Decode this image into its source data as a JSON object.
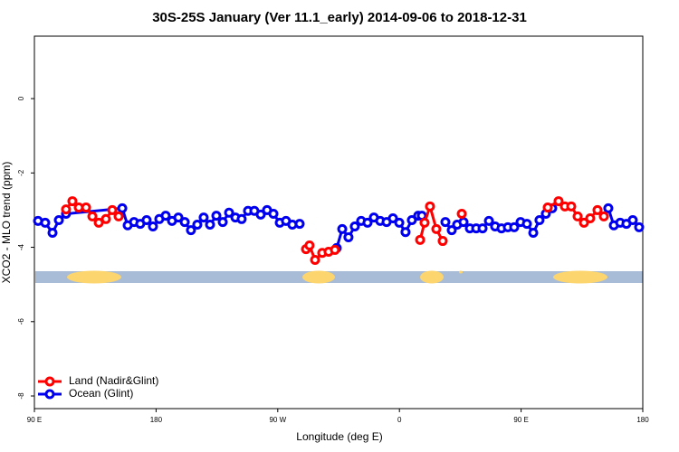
{
  "chart_data": {
    "type": "line",
    "title": "30S-25S January (Ver 11.1_early)   2014-09-06 to 2018-12-31",
    "x_label": "Longitude (deg E)",
    "y_label": "XCO2 - MLO trend (ppm)",
    "xlim": [
      90,
      540
    ],
    "ylim": [
      -8.34,
      1.68
    ],
    "xticks": [
      {
        "value": 90,
        "label": "90 E"
      },
      180,
      {
        "value": 270,
        "label": "90 W"
      },
      {
        "value": 360,
        "label": "0"
      },
      {
        "value": 450,
        "label": "90 E"
      },
      {
        "value": 540,
        "label": "180"
      }
    ],
    "yticks": [
      0,
      -2,
      -4,
      -6,
      -8
    ],
    "legend": "bottomleft",
    "series": [
      {
        "name": "Land (Nadir&Glint)",
        "color": "#ff0000",
        "x": [
          113.4,
          118.1,
          122.8,
          128.2,
          132.9,
          137.6,
          142.9,
          147.6,
          152.3,
          null,
          290.9,
          293.5,
          297.6,
          302.9,
          307.6,
          312.3,
          null,
          375.3,
          378.6,
          382.6,
          387.3,
          392.0,
          null,
          406.1,
          null,
          469.7,
          477.7,
          482.4,
          487.1,
          491.8,
          496.5,
          501.1,
          506.5,
          511.2
        ],
        "values": [
          -2.98,
          -2.76,
          -2.93,
          -2.93,
          -3.17,
          -3.34,
          -3.24,
          -3.0,
          -3.17,
          null,
          -4.05,
          -3.95,
          -4.34,
          -4.15,
          -4.12,
          -4.07,
          null,
          -3.8,
          -3.34,
          -2.9,
          -3.51,
          -3.83,
          null,
          -3.1,
          null,
          -2.93,
          -2.76,
          -2.9,
          -2.9,
          -3.17,
          -3.34,
          -3.22,
          -3.0,
          -3.17
        ]
      },
      {
        "name": "Ocean (Glint)",
        "color": "#0000ee",
        "x": [
          92.7,
          98.0,
          103.4,
          108.1,
          113.4,
          155.0,
          159.0,
          163.7,
          168.3,
          173.0,
          177.7,
          182.4,
          187.1,
          191.8,
          196.5,
          201.2,
          205.8,
          210.5,
          215.2,
          219.9,
          224.6,
          229.3,
          234.0,
          238.7,
          243.3,
          248.0,
          252.7,
          257.4,
          262.1,
          266.8,
          271.5,
          276.1,
          280.8,
          286.2,
          null,
          313.6,
          317.7,
          322.3,
          327.0,
          331.7,
          336.4,
          341.1,
          345.8,
          350.5,
          355.2,
          359.9,
          364.5,
          369.2,
          373.9,
          376.6,
          null,
          394.0,
          398.7,
          402.7,
          407.4,
          412.1,
          416.8,
          421.5,
          426.2,
          430.8,
          435.5,
          440.2,
          444.9,
          449.6,
          454.3,
          459.0,
          463.6,
          468.3,
          473.0,
          null,
          514.5,
          518.6,
          523.3,
          527.9,
          532.6,
          537.3
        ],
        "values": [
          -3.29,
          -3.34,
          -3.61,
          -3.27,
          -3.1,
          -2.95,
          -3.41,
          -3.32,
          -3.37,
          -3.27,
          -3.44,
          -3.24,
          -3.15,
          -3.29,
          -3.2,
          -3.32,
          -3.54,
          -3.39,
          -3.2,
          -3.39,
          -3.15,
          -3.32,
          -3.07,
          -3.2,
          -3.24,
          -3.02,
          -3.02,
          -3.12,
          -3.0,
          -3.1,
          -3.34,
          -3.29,
          -3.39,
          -3.37,
          null,
          -4.02,
          -3.51,
          -3.73,
          -3.44,
          -3.29,
          -3.34,
          -3.2,
          -3.29,
          -3.32,
          -3.22,
          -3.34,
          -3.59,
          -3.27,
          -3.15,
          -3.15,
          null,
          -3.32,
          -3.54,
          -3.39,
          -3.32,
          -3.49,
          -3.49,
          -3.49,
          -3.29,
          -3.44,
          -3.49,
          -3.46,
          -3.46,
          -3.32,
          -3.37,
          -3.61,
          -3.27,
          -3.1,
          -2.95,
          null,
          -2.95,
          -3.41,
          -3.34,
          -3.37,
          -3.27,
          -3.46
        ]
      }
    ]
  }
}
